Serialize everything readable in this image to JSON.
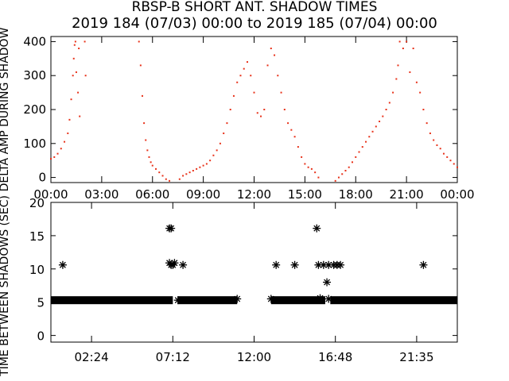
{
  "title_line1": "RBSP-B SHORT ANT. SHADOW TIMES",
  "title_line2": "2019 184 (07/03) 00:00 to 2019 185 (07/04) 00:00",
  "colors": {
    "top_series": "#e8321a",
    "axes": "#000000",
    "bottom_markers": "#000000"
  },
  "chart_data": [
    {
      "type": "scatter",
      "ylabel": "DELTA AMP DURING SHADOW",
      "xlim": [
        0,
        24
      ],
      "ylim": [
        -15,
        415
      ],
      "y_ticks": [
        0,
        100,
        200,
        300,
        400
      ],
      "x_ticks": [
        0,
        3,
        6,
        9,
        12,
        15,
        18,
        21,
        24
      ],
      "x_tick_labels": [
        "00:00",
        "03:00",
        "06:00",
        "09:00",
        "12:00",
        "15:00",
        "18:00",
        "21:00",
        "00:00"
      ],
      "series": [
        {
          "points": [
            [
              0.0,
              55
            ],
            [
              0.2,
              60
            ],
            [
              0.4,
              70
            ],
            [
              0.6,
              85
            ],
            [
              0.8,
              105
            ],
            [
              1.0,
              130
            ],
            [
              1.1,
              170
            ],
            [
              1.2,
              230
            ],
            [
              1.3,
              300
            ],
            [
              1.35,
              350
            ],
            [
              1.4,
              390
            ],
            [
              1.45,
              400
            ],
            [
              1.5,
              310
            ],
            [
              1.6,
              250
            ],
            [
              1.65,
              380
            ],
            [
              1.7,
              180
            ],
            [
              2.0,
              400
            ],
            [
              2.05,
              300
            ]
          ]
        },
        {
          "points": [
            [
              5.2,
              400
            ],
            [
              5.3,
              330
            ],
            [
              5.4,
              240
            ],
            [
              5.5,
              160
            ],
            [
              5.6,
              110
            ],
            [
              5.7,
              80
            ],
            [
              5.8,
              60
            ],
            [
              5.9,
              45
            ],
            [
              6.0,
              35
            ],
            [
              6.2,
              25
            ],
            [
              6.4,
              15
            ],
            [
              6.6,
              5
            ],
            [
              6.8,
              -5
            ],
            [
              7.0,
              -10
            ]
          ]
        },
        {
          "points": [
            [
              7.6,
              -5
            ],
            [
              7.8,
              5
            ],
            [
              8.0,
              10
            ],
            [
              8.2,
              15
            ],
            [
              8.4,
              20
            ],
            [
              8.6,
              25
            ],
            [
              8.8,
              30
            ],
            [
              9.0,
              35
            ],
            [
              9.2,
              40
            ],
            [
              9.4,
              50
            ],
            [
              9.6,
              65
            ],
            [
              9.8,
              80
            ],
            [
              10.0,
              100
            ],
            [
              10.2,
              130
            ],
            [
              10.4,
              160
            ],
            [
              10.6,
              200
            ],
            [
              10.8,
              240
            ],
            [
              11.0,
              280
            ],
            [
              11.2,
              300
            ],
            [
              11.4,
              320
            ],
            [
              11.6,
              340
            ],
            [
              11.8,
              300
            ],
            [
              12.0,
              250
            ],
            [
              12.2,
              190
            ],
            [
              12.4,
              180
            ],
            [
              12.6,
              200
            ],
            [
              12.8,
              330
            ],
            [
              13.0,
              380
            ],
            [
              13.2,
              360
            ],
            [
              13.4,
              300
            ],
            [
              13.6,
              250
            ],
            [
              13.8,
              200
            ],
            [
              14.0,
              160
            ],
            [
              14.2,
              140
            ],
            [
              14.4,
              120
            ],
            [
              14.6,
              90
            ],
            [
              14.8,
              60
            ],
            [
              15.0,
              40
            ],
            [
              15.2,
              30
            ],
            [
              15.4,
              25
            ],
            [
              15.6,
              15
            ],
            [
              15.8,
              0
            ]
          ]
        },
        {
          "points": [
            [
              16.8,
              -10
            ],
            [
              17.0,
              0
            ],
            [
              17.2,
              10
            ],
            [
              17.4,
              20
            ],
            [
              17.6,
              30
            ],
            [
              17.8,
              45
            ],
            [
              18.0,
              60
            ],
            [
              18.2,
              75
            ],
            [
              18.4,
              90
            ],
            [
              18.6,
              105
            ],
            [
              18.8,
              120
            ],
            [
              19.0,
              135
            ],
            [
              19.2,
              150
            ],
            [
              19.4,
              165
            ],
            [
              19.6,
              180
            ],
            [
              19.8,
              200
            ],
            [
              20.0,
              220
            ],
            [
              20.2,
              250
            ],
            [
              20.4,
              290
            ],
            [
              20.5,
              330
            ],
            [
              20.6,
              400
            ],
            [
              20.8,
              380
            ],
            [
              21.0,
              400
            ],
            [
              21.2,
              310
            ],
            [
              21.4,
              380
            ],
            [
              21.6,
              280
            ],
            [
              21.8,
              250
            ],
            [
              22.0,
              200
            ],
            [
              22.2,
              160
            ],
            [
              22.4,
              130
            ],
            [
              22.6,
              110
            ],
            [
              22.8,
              95
            ],
            [
              23.0,
              85
            ],
            [
              23.2,
              70
            ],
            [
              23.4,
              60
            ],
            [
              23.6,
              50
            ],
            [
              23.8,
              40
            ],
            [
              24.0,
              30
            ]
          ]
        }
      ]
    },
    {
      "type": "scatter",
      "ylabel": "TIME BETWEEN SHADOWS (SEC)",
      "xlim": [
        0,
        24
      ],
      "ylim": [
        -1,
        20
      ],
      "y_ticks": [
        0,
        5,
        10,
        15,
        20
      ],
      "x_ticks": [
        2.4,
        7.2,
        12.0,
        16.8,
        21.6
      ],
      "x_tick_labels": [
        "02:24",
        "07:12",
        "12:00",
        "16:48",
        "21:35"
      ],
      "baseline_y": 5.3,
      "baseline_segments": [
        [
          0.0,
          7.2
        ],
        [
          7.5,
          11.0
        ],
        [
          13.0,
          16.2
        ],
        [
          16.5,
          24.0
        ]
      ],
      "series": [
        {
          "points": [
            [
              0.7,
              10.6
            ],
            [
              7.0,
              16.1
            ],
            [
              7.1,
              16.1
            ],
            [
              7.0,
              10.9
            ],
            [
              7.1,
              10.6
            ],
            [
              7.2,
              10.6
            ],
            [
              7.3,
              10.9
            ],
            [
              7.8,
              10.6
            ],
            [
              13.3,
              10.6
            ],
            [
              14.4,
              10.6
            ],
            [
              15.7,
              16.1
            ],
            [
              15.8,
              10.6
            ],
            [
              16.1,
              10.6
            ],
            [
              16.3,
              8.0
            ],
            [
              16.4,
              10.6
            ],
            [
              16.7,
              10.6
            ],
            [
              16.9,
              10.6
            ],
            [
              17.1,
              10.6
            ],
            [
              22.0,
              10.6
            ]
          ]
        },
        {
          "points": [
            [
              7.5,
              5.3
            ],
            [
              11.0,
              5.5
            ],
            [
              13.0,
              5.5
            ],
            [
              15.9,
              5.6
            ],
            [
              16.4,
              5.5
            ]
          ]
        }
      ]
    }
  ]
}
